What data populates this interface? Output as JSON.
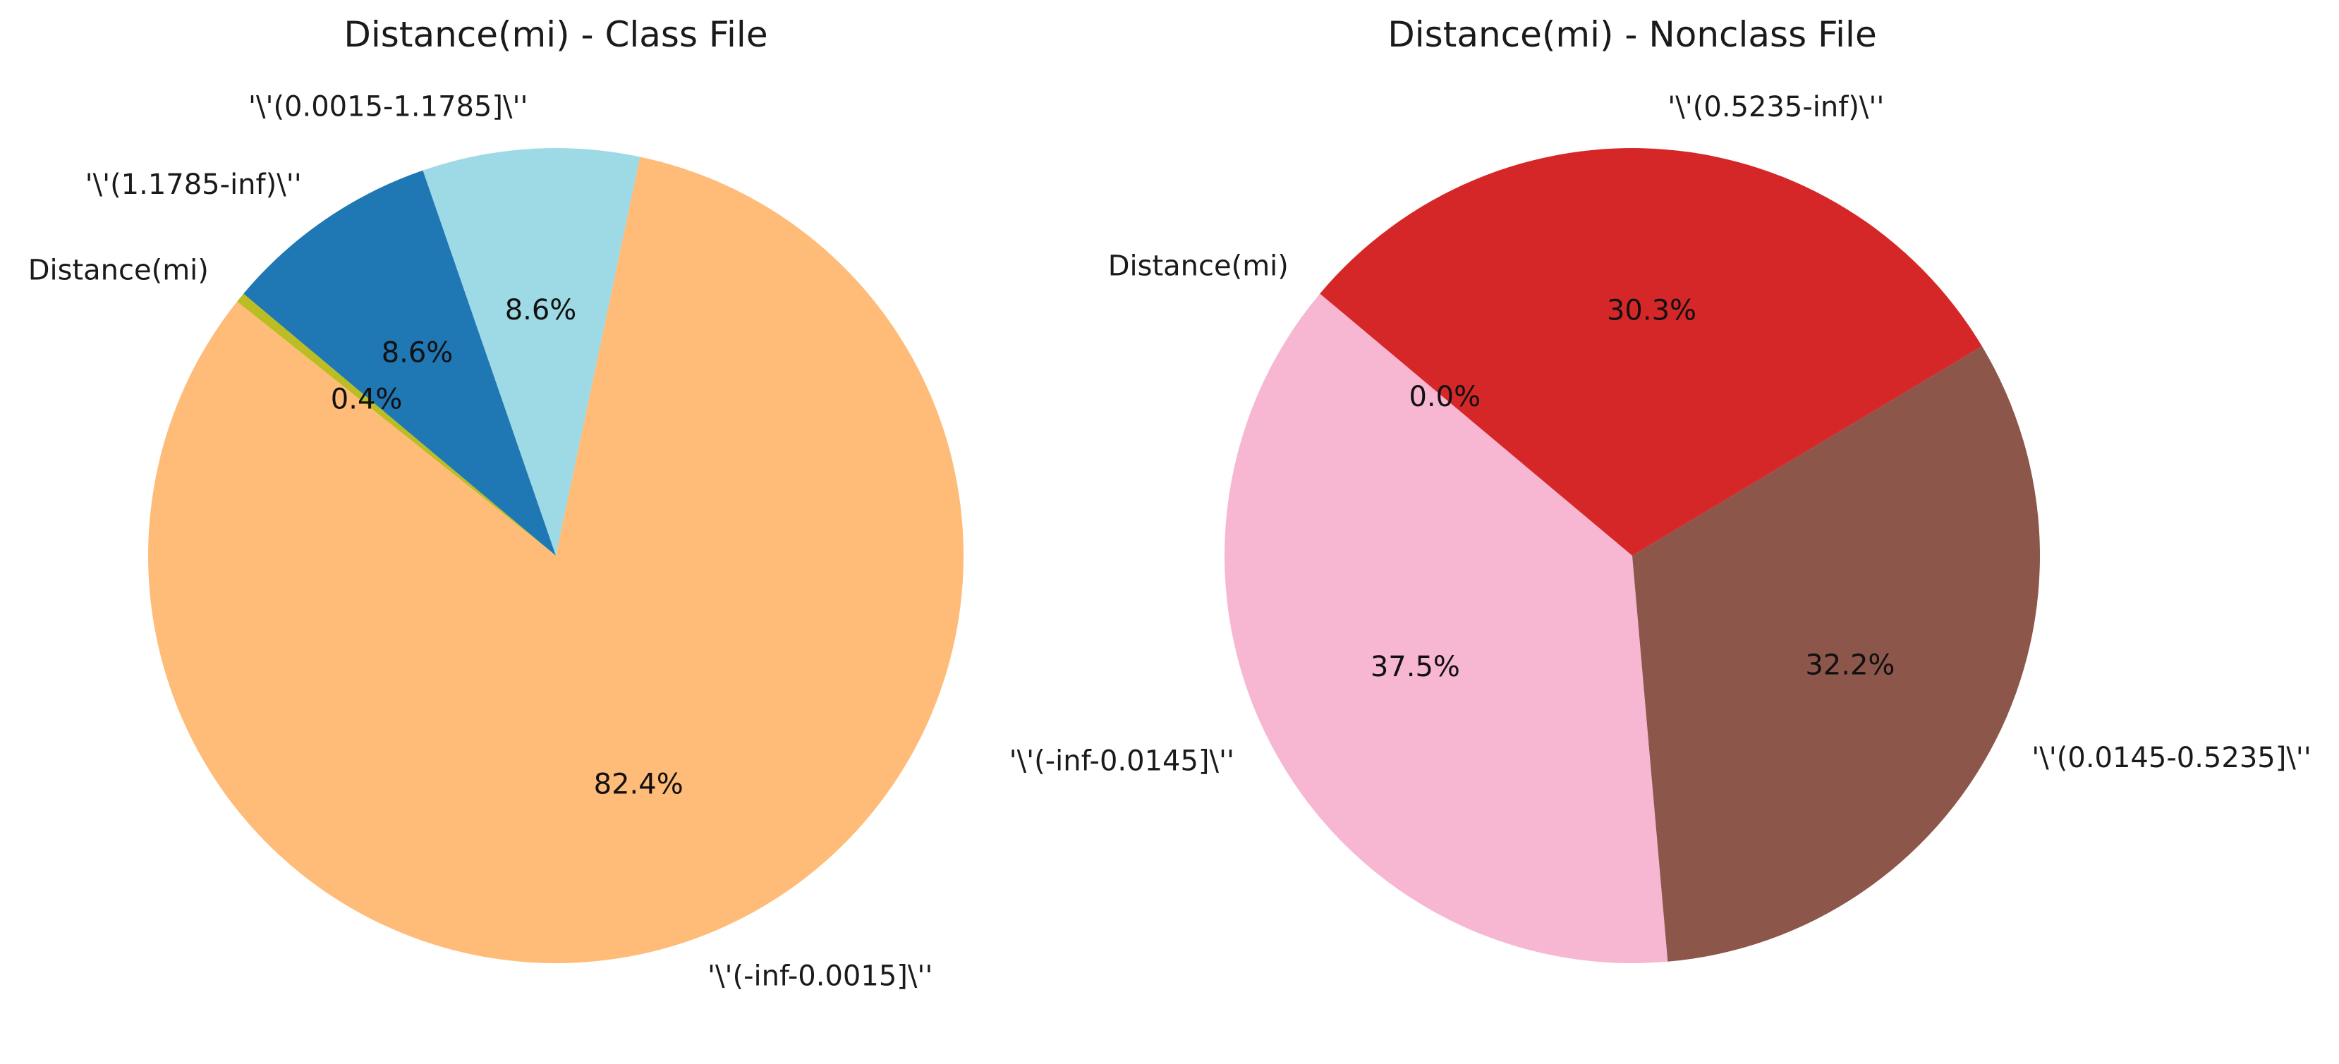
{
  "chart_data": [
    {
      "type": "pie",
      "title": "Distance(mi) - Class File",
      "start_angle_deg": 140,
      "direction": "counterclockwise",
      "slices": [
        {
          "label": "Distance(mi)",
          "value": 0.4,
          "pct_label": "0.4%",
          "color": "#bcbd22"
        },
        {
          "label": "'\\'(-inf-0.0015]\\''",
          "value": 82.4,
          "pct_label": "82.4%",
          "color": "#ffbb78"
        },
        {
          "label": "'\\'(0.0015-1.1785]\\''",
          "value": 8.6,
          "pct_label": "8.6%",
          "color": "#9edae5"
        },
        {
          "label": "'\\'(1.1785-inf)\\''",
          "value": 8.6,
          "pct_label": "8.6%",
          "color": "#1f77b4"
        }
      ]
    },
    {
      "type": "pie",
      "title": "Distance(mi) - Nonclass File",
      "start_angle_deg": 140,
      "direction": "counterclockwise",
      "slices": [
        {
          "label": "Distance(mi)",
          "value": 0.0,
          "pct_label": "0.0%",
          "color": "#e377c2"
        },
        {
          "label": "'\\'(-inf-0.0145]\\''",
          "value": 37.5,
          "pct_label": "37.5%",
          "color": "#f7b6d2"
        },
        {
          "label": "'\\'(0.0145-0.5235]\\''",
          "value": 32.2,
          "pct_label": "32.2%",
          "color": "#8c564b"
        },
        {
          "label": "'\\'(0.5235-inf)\\''",
          "value": 30.3,
          "pct_label": "30.3%",
          "color": "#d62728"
        }
      ]
    }
  ]
}
